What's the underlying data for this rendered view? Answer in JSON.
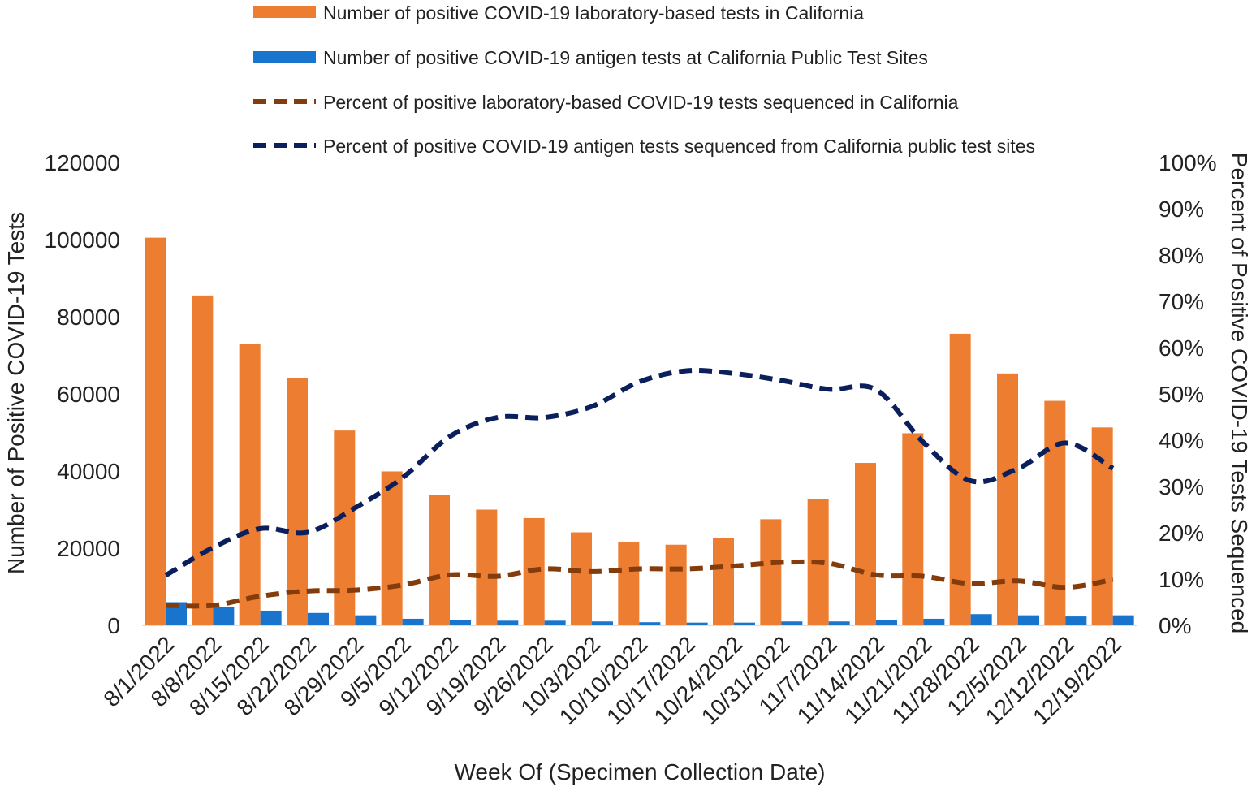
{
  "chart_data": {
    "type": "bar+line",
    "title": "",
    "xlabel": "Week Of (Specimen Collection Date)",
    "ylabel_left": "Number of Positive COVID-19 Tests",
    "ylabel_right": "Percent of Positive COVID-19 Tests Sequenced",
    "ylim_left": [
      0,
      120000
    ],
    "ylim_right": [
      0,
      100
    ],
    "left_ticks": [
      "0",
      "20000",
      "40000",
      "60000",
      "80000",
      "100000",
      "120000"
    ],
    "right_ticks": [
      "0%",
      "10%",
      "20%",
      "30%",
      "40%",
      "50%",
      "60%",
      "70%",
      "80%",
      "90%",
      "100%"
    ],
    "categories": [
      "8/1/2022",
      "8/8/2022",
      "8/15/2022",
      "8/22/2022",
      "8/29/2022",
      "9/5/2022",
      "9/12/2022",
      "9/19/2022",
      "9/26/2022",
      "10/3/2022",
      "10/10/2022",
      "10/17/2022",
      "10/24/2022",
      "10/31/2022",
      "11/7/2022",
      "11/14/2022",
      "11/21/2022",
      "11/28/2022",
      "12/5/2022",
      "12/12/2022",
      "12/19/2022"
    ],
    "series": [
      {
        "name": " Number of positive COVID-19 laboratory-based tests in California",
        "kind": "bar",
        "axis": "left",
        "color": "#ED7D31",
        "values": [
          100500,
          85500,
          73000,
          64200,
          50500,
          39900,
          33700,
          30000,
          27800,
          24100,
          21600,
          20900,
          22600,
          27500,
          32800,
          42100,
          49800,
          75600,
          65300,
          58200,
          51300
        ]
      },
      {
        "name": "Number of positive COVID-19 antigen tests at California Public Test Sites",
        "kind": "bar",
        "axis": "left",
        "color": "#1874CD",
        "values": [
          6000,
          4800,
          3800,
          3200,
          2600,
          1700,
          1300,
          1200,
          1200,
          1000,
          800,
          700,
          700,
          1000,
          1000,
          1300,
          1700,
          2900,
          2600,
          2300,
          2600
        ]
      },
      {
        "name": "Percent of positive laboratory-based COVID-19 tests sequenced in California",
        "kind": "line",
        "axis": "right",
        "color": "#843C0C",
        "values": [
          4.3,
          4.3,
          6.3,
          7.4,
          7.6,
          8.7,
          10.9,
          10.6,
          12.2,
          11.6,
          12.2,
          12.2,
          12.8,
          13.6,
          13.4,
          10.9,
          10.6,
          9.0,
          9.6,
          8.2,
          9.9
        ]
      },
      {
        "name": "Percent of positive COVID-19 antigen tests sequenced from California public test sites",
        "kind": "line",
        "axis": "right",
        "color": "#0B1F5C",
        "values": [
          10.8,
          16.8,
          20.9,
          20.1,
          25.4,
          31.9,
          40.8,
          44.9,
          44.9,
          47.3,
          52.6,
          55.0,
          54.4,
          52.9,
          51.0,
          50.9,
          39.5,
          31.2,
          33.9,
          39.4,
          33.9
        ]
      }
    ]
  }
}
